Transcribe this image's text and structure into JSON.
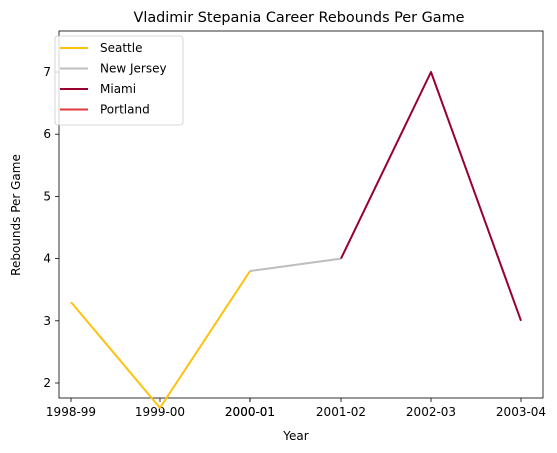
{
  "chart_data": {
    "type": "line",
    "title": "Vladimir Stepania Career Rebounds Per Game",
    "xlabel": "Year",
    "ylabel": "Rebounds Per Game",
    "x_ticks": [
      "1998-99",
      "1999-00",
      "2000-01",
      "2000-01",
      "2001-02",
      "2002-03",
      "2003-04"
    ],
    "y_ticks": [
      2,
      3,
      4,
      5,
      6,
      7
    ],
    "ylim": [
      1.37,
      7.26
    ],
    "grid": false,
    "legend_position": "upper-left",
    "series": [
      {
        "name": "Seattle",
        "color": "#FDC20F",
        "x": [
          0,
          1,
          2
        ],
        "y": [
          3.3,
          1.6,
          3.8
        ]
      },
      {
        "name": "New Jersey",
        "color": "#BDBDBD",
        "x": [
          2,
          3
        ],
        "y": [
          3.8,
          4.0
        ]
      },
      {
        "name": "Miami",
        "color": "#98002E",
        "x": [
          3,
          4,
          5
        ],
        "y": [
          4.0,
          7.0,
          3.0
        ]
      },
      {
        "name": "Portland",
        "color": "#E03A3E",
        "x": [],
        "y": []
      }
    ]
  }
}
